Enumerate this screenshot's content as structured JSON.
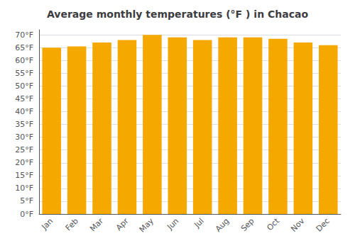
{
  "chart_data": {
    "type": "bar",
    "title": "Average monthly temperatures (°F ) in Chacao",
    "categories": [
      "Jan",
      "Feb",
      "Mar",
      "Apr",
      "May",
      "Jun",
      "Jul",
      "Aug",
      "Sep",
      "Oct",
      "Nov",
      "Dec"
    ],
    "values": [
      65.0,
      65.5,
      67.0,
      68.0,
      70.0,
      69.0,
      68.0,
      69.0,
      69.0,
      68.5,
      67.0,
      66.0
    ],
    "color": "#F5A800",
    "ylim": [
      0,
      72
    ],
    "yticks": [
      {
        "value": 0,
        "label": "0°F"
      },
      {
        "value": 5,
        "label": "5°F"
      },
      {
        "value": 10,
        "label": "10°F"
      },
      {
        "value": 15,
        "label": "15°F"
      },
      {
        "value": 20,
        "label": "20°F"
      },
      {
        "value": 25,
        "label": "25°F"
      },
      {
        "value": 30,
        "label": "30°F"
      },
      {
        "value": 35,
        "label": "35°F"
      },
      {
        "value": 40,
        "label": "40°F"
      },
      {
        "value": 45,
        "label": "45°F"
      },
      {
        "value": 50,
        "label": "50°F"
      },
      {
        "value": 55,
        "label": "55°F"
      },
      {
        "value": 60,
        "label": "60°F"
      },
      {
        "value": 65,
        "label": "65°F"
      },
      {
        "value": 70,
        "label": "70°F"
      }
    ],
    "grid": true
  }
}
